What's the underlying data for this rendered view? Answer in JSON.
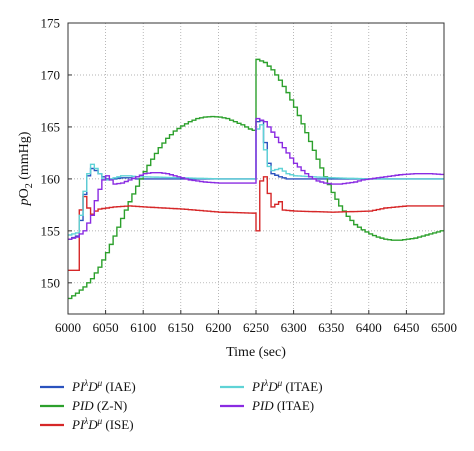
{
  "chart_data": {
    "type": "line",
    "title": "",
    "xlabel": "Time (sec)",
    "ylabel": {
      "prefix": "p",
      "main": "O",
      "sub": "2",
      "suffix": " (mmHg)"
    },
    "xlim": [
      6000,
      6500
    ],
    "ylim": [
      147,
      175
    ],
    "x_ticks": [
      6000,
      6050,
      6100,
      6150,
      6200,
      6250,
      6300,
      6350,
      6400,
      6450,
      6500
    ],
    "y_ticks": [
      150,
      155,
      160,
      165,
      170,
      175
    ],
    "grid": true,
    "grid_style": "dotted",
    "legend_position": "bottom, two columns",
    "step_plot": true,
    "series": [
      {
        "name_main": "PI",
        "name_sup1": "λ",
        "name_mid": "D",
        "name_sup2": "μ",
        "name_tail": " (IAE)",
        "color": "#2a52be",
        "points": [
          [
            6000,
            154.2
          ],
          [
            6010,
            154.5
          ],
          [
            6015,
            156
          ],
          [
            6020,
            158.5
          ],
          [
            6025,
            160.3
          ],
          [
            6030,
            161.0
          ],
          [
            6035,
            160.8
          ],
          [
            6040,
            160.5
          ],
          [
            6045,
            160.2
          ],
          [
            6050,
            160.0
          ],
          [
            6060,
            160.0
          ],
          [
            6070,
            160.1
          ],
          [
            6080,
            160.1
          ],
          [
            6090,
            160.0
          ],
          [
            6100,
            160.0
          ],
          [
            6150,
            160.0
          ],
          [
            6200,
            160.0
          ],
          [
            6248,
            160.0
          ],
          [
            6250,
            165.5
          ],
          [
            6255,
            165.6
          ],
          [
            6260,
            163.5
          ],
          [
            6265,
            161.5
          ],
          [
            6270,
            160.5
          ],
          [
            6280,
            160.2
          ],
          [
            6290,
            160.0
          ],
          [
            6300,
            160.0
          ],
          [
            6350,
            160.0
          ],
          [
            6400,
            160.0
          ],
          [
            6450,
            160.0
          ],
          [
            6500,
            160.0
          ]
        ]
      },
      {
        "name_main": "PID",
        "name_tail": " (Z-N)",
        "color": "#2ca02c",
        "points": [
          [
            6000,
            148.5
          ],
          [
            6010,
            149.0
          ],
          [
            6020,
            149.6
          ],
          [
            6030,
            150.4
          ],
          [
            6040,
            151.5
          ],
          [
            6050,
            152.9
          ],
          [
            6060,
            154.5
          ],
          [
            6070,
            156.2
          ],
          [
            6080,
            157.8
          ],
          [
            6090,
            159.3
          ],
          [
            6100,
            160.7
          ],
          [
            6110,
            161.9
          ],
          [
            6120,
            163.0
          ],
          [
            6130,
            163.9
          ],
          [
            6140,
            164.6
          ],
          [
            6150,
            165.1
          ],
          [
            6160,
            165.5
          ],
          [
            6170,
            165.8
          ],
          [
            6180,
            165.95
          ],
          [
            6190,
            166.0
          ],
          [
            6200,
            165.95
          ],
          [
            6210,
            165.8
          ],
          [
            6220,
            165.5
          ],
          [
            6230,
            165.2
          ],
          [
            6240,
            164.8
          ],
          [
            6248,
            164.6
          ],
          [
            6250,
            171.5
          ],
          [
            6260,
            171.2
          ],
          [
            6270,
            170.5
          ],
          [
            6280,
            169.5
          ],
          [
            6290,
            168.3
          ],
          [
            6300,
            166.9
          ],
          [
            6310,
            165.3
          ],
          [
            6320,
            163.6
          ],
          [
            6330,
            161.9
          ],
          [
            6340,
            160.2
          ],
          [
            6350,
            158.7
          ],
          [
            6360,
            157.4
          ],
          [
            6370,
            156.4
          ],
          [
            6380,
            155.6
          ],
          [
            6390,
            155.1
          ],
          [
            6400,
            154.7
          ],
          [
            6410,
            154.4
          ],
          [
            6420,
            154.2
          ],
          [
            6430,
            154.1
          ],
          [
            6440,
            154.1
          ],
          [
            6450,
            154.2
          ],
          [
            6460,
            154.3
          ],
          [
            6470,
            154.5
          ],
          [
            6480,
            154.7
          ],
          [
            6490,
            154.9
          ],
          [
            6500,
            155.1
          ]
        ]
      },
      {
        "name_main": "PI",
        "name_sup1": "λ",
        "name_mid": "D",
        "name_sup2": "μ",
        "name_tail": " (ISE)",
        "color": "#d62728",
        "points": [
          [
            6000,
            151.2
          ],
          [
            6010,
            151.2
          ],
          [
            6013,
            156.5
          ],
          [
            6020,
            158.3
          ],
          [
            6025,
            157.2
          ],
          [
            6030,
            156.6
          ],
          [
            6035,
            156.9
          ],
          [
            6040,
            157.1
          ],
          [
            6050,
            157.2
          ],
          [
            6060,
            157.3
          ],
          [
            6080,
            157.4
          ],
          [
            6100,
            157.3
          ],
          [
            6150,
            157.1
          ],
          [
            6200,
            156.8
          ],
          [
            6248,
            156.7
          ],
          [
            6250,
            155.0
          ],
          [
            6255,
            159.8
          ],
          [
            6260,
            160.2
          ],
          [
            6265,
            158.6
          ],
          [
            6270,
            157.3
          ],
          [
            6280,
            157.8
          ],
          [
            6285,
            157.0
          ],
          [
            6300,
            156.9
          ],
          [
            6350,
            156.8
          ],
          [
            6400,
            156.9
          ],
          [
            6420,
            157.2
          ],
          [
            6450,
            157.4
          ],
          [
            6500,
            157.4
          ]
        ]
      },
      {
        "name_main": "PI",
        "name_sup1": "λ",
        "name_mid": "D",
        "name_sup2": "μ",
        "name_tail": " (ITAE)",
        "color": "#5fd3d6",
        "points": [
          [
            6000,
            154.6
          ],
          [
            6010,
            154.8
          ],
          [
            6015,
            156.5
          ],
          [
            6020,
            158.8
          ],
          [
            6025,
            160.5
          ],
          [
            6030,
            161.4
          ],
          [
            6035,
            161.0
          ],
          [
            6040,
            160.5
          ],
          [
            6045,
            160.0
          ],
          [
            6050,
            159.9
          ],
          [
            6060,
            160.1
          ],
          [
            6070,
            160.3
          ],
          [
            6080,
            160.3
          ],
          [
            6090,
            160.2
          ],
          [
            6100,
            160.2
          ],
          [
            6150,
            160.1
          ],
          [
            6200,
            160.0
          ],
          [
            6248,
            160.0
          ],
          [
            6250,
            164.8
          ],
          [
            6255,
            165.2
          ],
          [
            6260,
            162.8
          ],
          [
            6265,
            161.2
          ],
          [
            6270,
            160.8
          ],
          [
            6280,
            161.0
          ],
          [
            6290,
            160.5
          ],
          [
            6300,
            160.3
          ],
          [
            6350,
            160.1
          ],
          [
            6400,
            160.0
          ],
          [
            6450,
            160.0
          ],
          [
            6500,
            160.0
          ]
        ]
      },
      {
        "name_main": "PID",
        "name_tail": " (ITAE)",
        "color": "#8a2be2",
        "points": [
          [
            6000,
            154.2
          ],
          [
            6010,
            154.4
          ],
          [
            6020,
            155.0
          ],
          [
            6030,
            156.5
          ],
          [
            6035,
            157.9
          ],
          [
            6040,
            159.0
          ],
          [
            6045,
            159.9
          ],
          [
            6050,
            160.3
          ],
          [
            6055,
            159.9
          ],
          [
            6060,
            159.5
          ],
          [
            6070,
            159.6
          ],
          [
            6080,
            159.9
          ],
          [
            6090,
            160.2
          ],
          [
            6100,
            160.5
          ],
          [
            6110,
            160.6
          ],
          [
            6120,
            160.6
          ],
          [
            6130,
            160.5
          ],
          [
            6140,
            160.3
          ],
          [
            6150,
            160.1
          ],
          [
            6160,
            159.9
          ],
          [
            6170,
            159.8
          ],
          [
            6180,
            159.7
          ],
          [
            6200,
            159.6
          ],
          [
            6248,
            159.6
          ],
          [
            6250,
            165.8
          ],
          [
            6260,
            165.5
          ],
          [
            6270,
            164.5
          ],
          [
            6280,
            163.5
          ],
          [
            6290,
            162.5
          ],
          [
            6300,
            161.5
          ],
          [
            6310,
            160.8
          ],
          [
            6320,
            160.2
          ],
          [
            6330,
            159.8
          ],
          [
            6340,
            159.6
          ],
          [
            6350,
            159.5
          ],
          [
            6360,
            159.5
          ],
          [
            6370,
            159.6
          ],
          [
            6380,
            159.7
          ],
          [
            6390,
            159.9
          ],
          [
            6400,
            160.0
          ],
          [
            6420,
            160.2
          ],
          [
            6440,
            160.4
          ],
          [
            6460,
            160.5
          ],
          [
            6480,
            160.5
          ],
          [
            6500,
            160.4
          ]
        ]
      }
    ]
  }
}
